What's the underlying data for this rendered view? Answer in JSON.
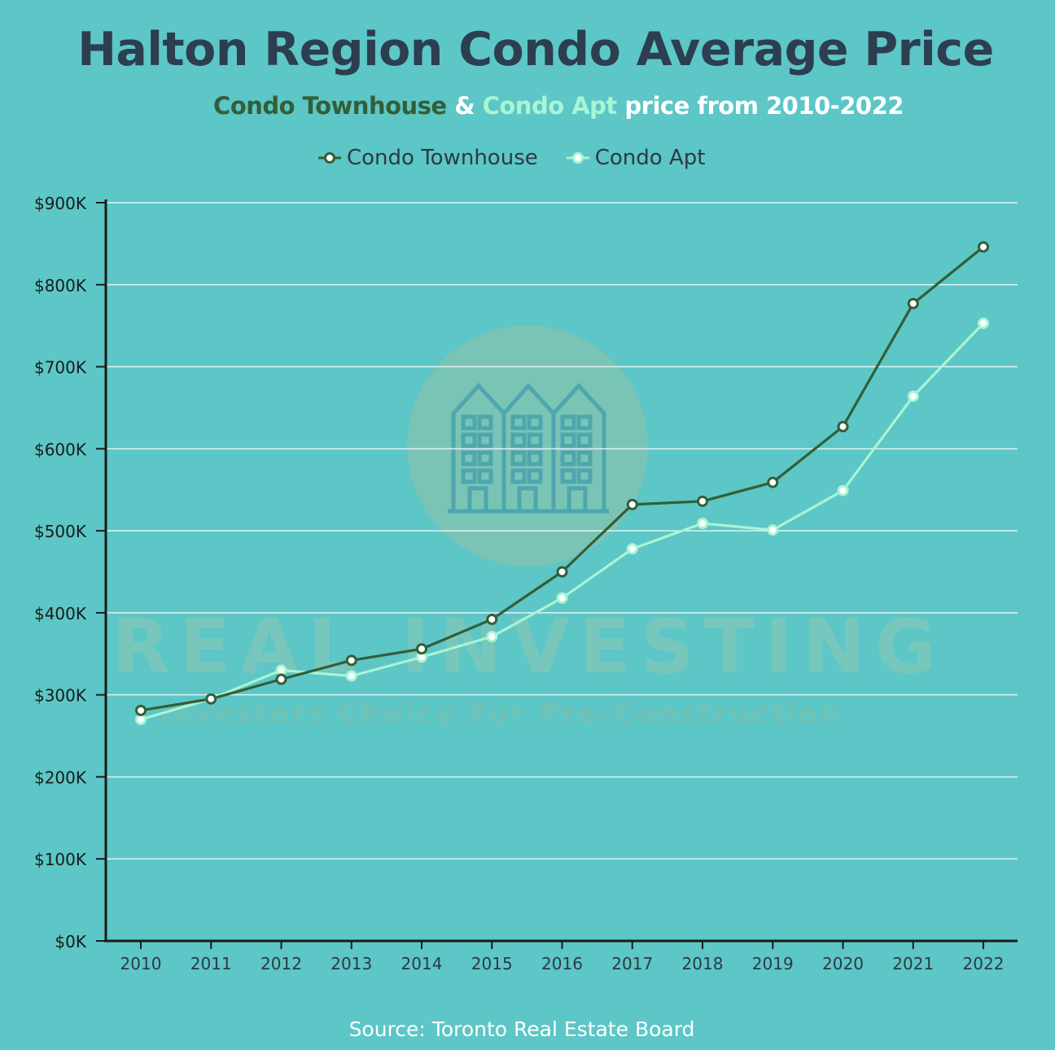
{
  "header": {
    "title": "Halton Region Condo Average Price",
    "subtitle_part1": "Condo Townhouse",
    "subtitle_amp": " & ",
    "subtitle_part2": "Condo Apt",
    "subtitle_part3": " price from 2010-2022"
  },
  "source": "Source: Toronto Real Estate Board",
  "watermark": {
    "brand": "REAL INVESTING",
    "tagline": "Investors Choice For Pre-Construction"
  },
  "colors": {
    "background": "#5dc6c6",
    "townhouse": "#335e38",
    "apt": "#a8f5d4",
    "grid": "#dff3f3"
  },
  "chart_data": {
    "type": "line",
    "title": "Halton Region Condo Average Price",
    "xlabel": "",
    "ylabel": "",
    "x": [
      "2010",
      "2011",
      "2012",
      "2013",
      "2014",
      "2015",
      "2016",
      "2017",
      "2018",
      "2019",
      "2020",
      "2021",
      "2022"
    ],
    "yticks": [
      "$0K",
      "$100K",
      "$200K",
      "$300K",
      "$400K",
      "$500K",
      "$600K",
      "$700K",
      "$800K",
      "$900K"
    ],
    "ylim": [
      0,
      900000
    ],
    "grid": true,
    "legend_position": "top-center",
    "series": [
      {
        "name": "Condo Townhouse",
        "values": [
          281000,
          295000,
          319000,
          342000,
          356000,
          392000,
          450000,
          532000,
          536000,
          559000,
          627000,
          777000,
          846000
        ]
      },
      {
        "name": "Condo Apt",
        "values": [
          270000,
          295000,
          330000,
          323000,
          346000,
          371000,
          418000,
          478000,
          509000,
          501000,
          549000,
          664000,
          753000
        ]
      }
    ]
  }
}
